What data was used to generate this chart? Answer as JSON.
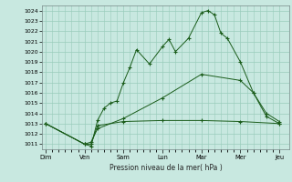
{
  "background_color": "#c8e8e0",
  "grid_color": "#99ccbb",
  "line_color": "#1a5c1a",
  "xlabel": "Pression niveau de la mer( hPa )",
  "ylim_min": 1010.5,
  "ylim_max": 1024.5,
  "yticks": [
    1011,
    1012,
    1013,
    1014,
    1015,
    1016,
    1017,
    1018,
    1019,
    1020,
    1021,
    1022,
    1023,
    1024
  ],
  "day_labels": [
    "Dim",
    "Ven",
    "Sam",
    "Lun",
    "Mar",
    "Mer",
    "Jeu"
  ],
  "day_positions": [
    0,
    6,
    12,
    18,
    24,
    30,
    36
  ],
  "xlim_min": -0.5,
  "xlim_max": 37.5,
  "line1_x": [
    0,
    6,
    7,
    8,
    9,
    10,
    11,
    12,
    13,
    14,
    16,
    18,
    19,
    20,
    22,
    24,
    25,
    26,
    27,
    28,
    30,
    32,
    34,
    36
  ],
  "line1_y": [
    1013.0,
    1011.0,
    1010.8,
    1013.3,
    1014.5,
    1015.0,
    1015.2,
    1017.0,
    1018.5,
    1020.2,
    1018.8,
    1020.5,
    1021.2,
    1020.0,
    1021.3,
    1023.8,
    1024.0,
    1023.6,
    1021.8,
    1021.3,
    1019.0,
    1016.0,
    1013.7,
    1013.0
  ],
  "line2_x": [
    0,
    6,
    7,
    8,
    12,
    18,
    24,
    30,
    36
  ],
  "line2_y": [
    1013.0,
    1011.0,
    1011.0,
    1012.8,
    1013.2,
    1013.3,
    1013.3,
    1013.2,
    1013.0
  ],
  "line3_x": [
    0,
    6,
    7,
    8,
    12,
    18,
    24,
    30,
    32,
    34,
    36
  ],
  "line3_y": [
    1013.0,
    1011.0,
    1011.2,
    1012.5,
    1013.5,
    1015.5,
    1017.8,
    1017.2,
    1016.0,
    1014.0,
    1013.2
  ]
}
